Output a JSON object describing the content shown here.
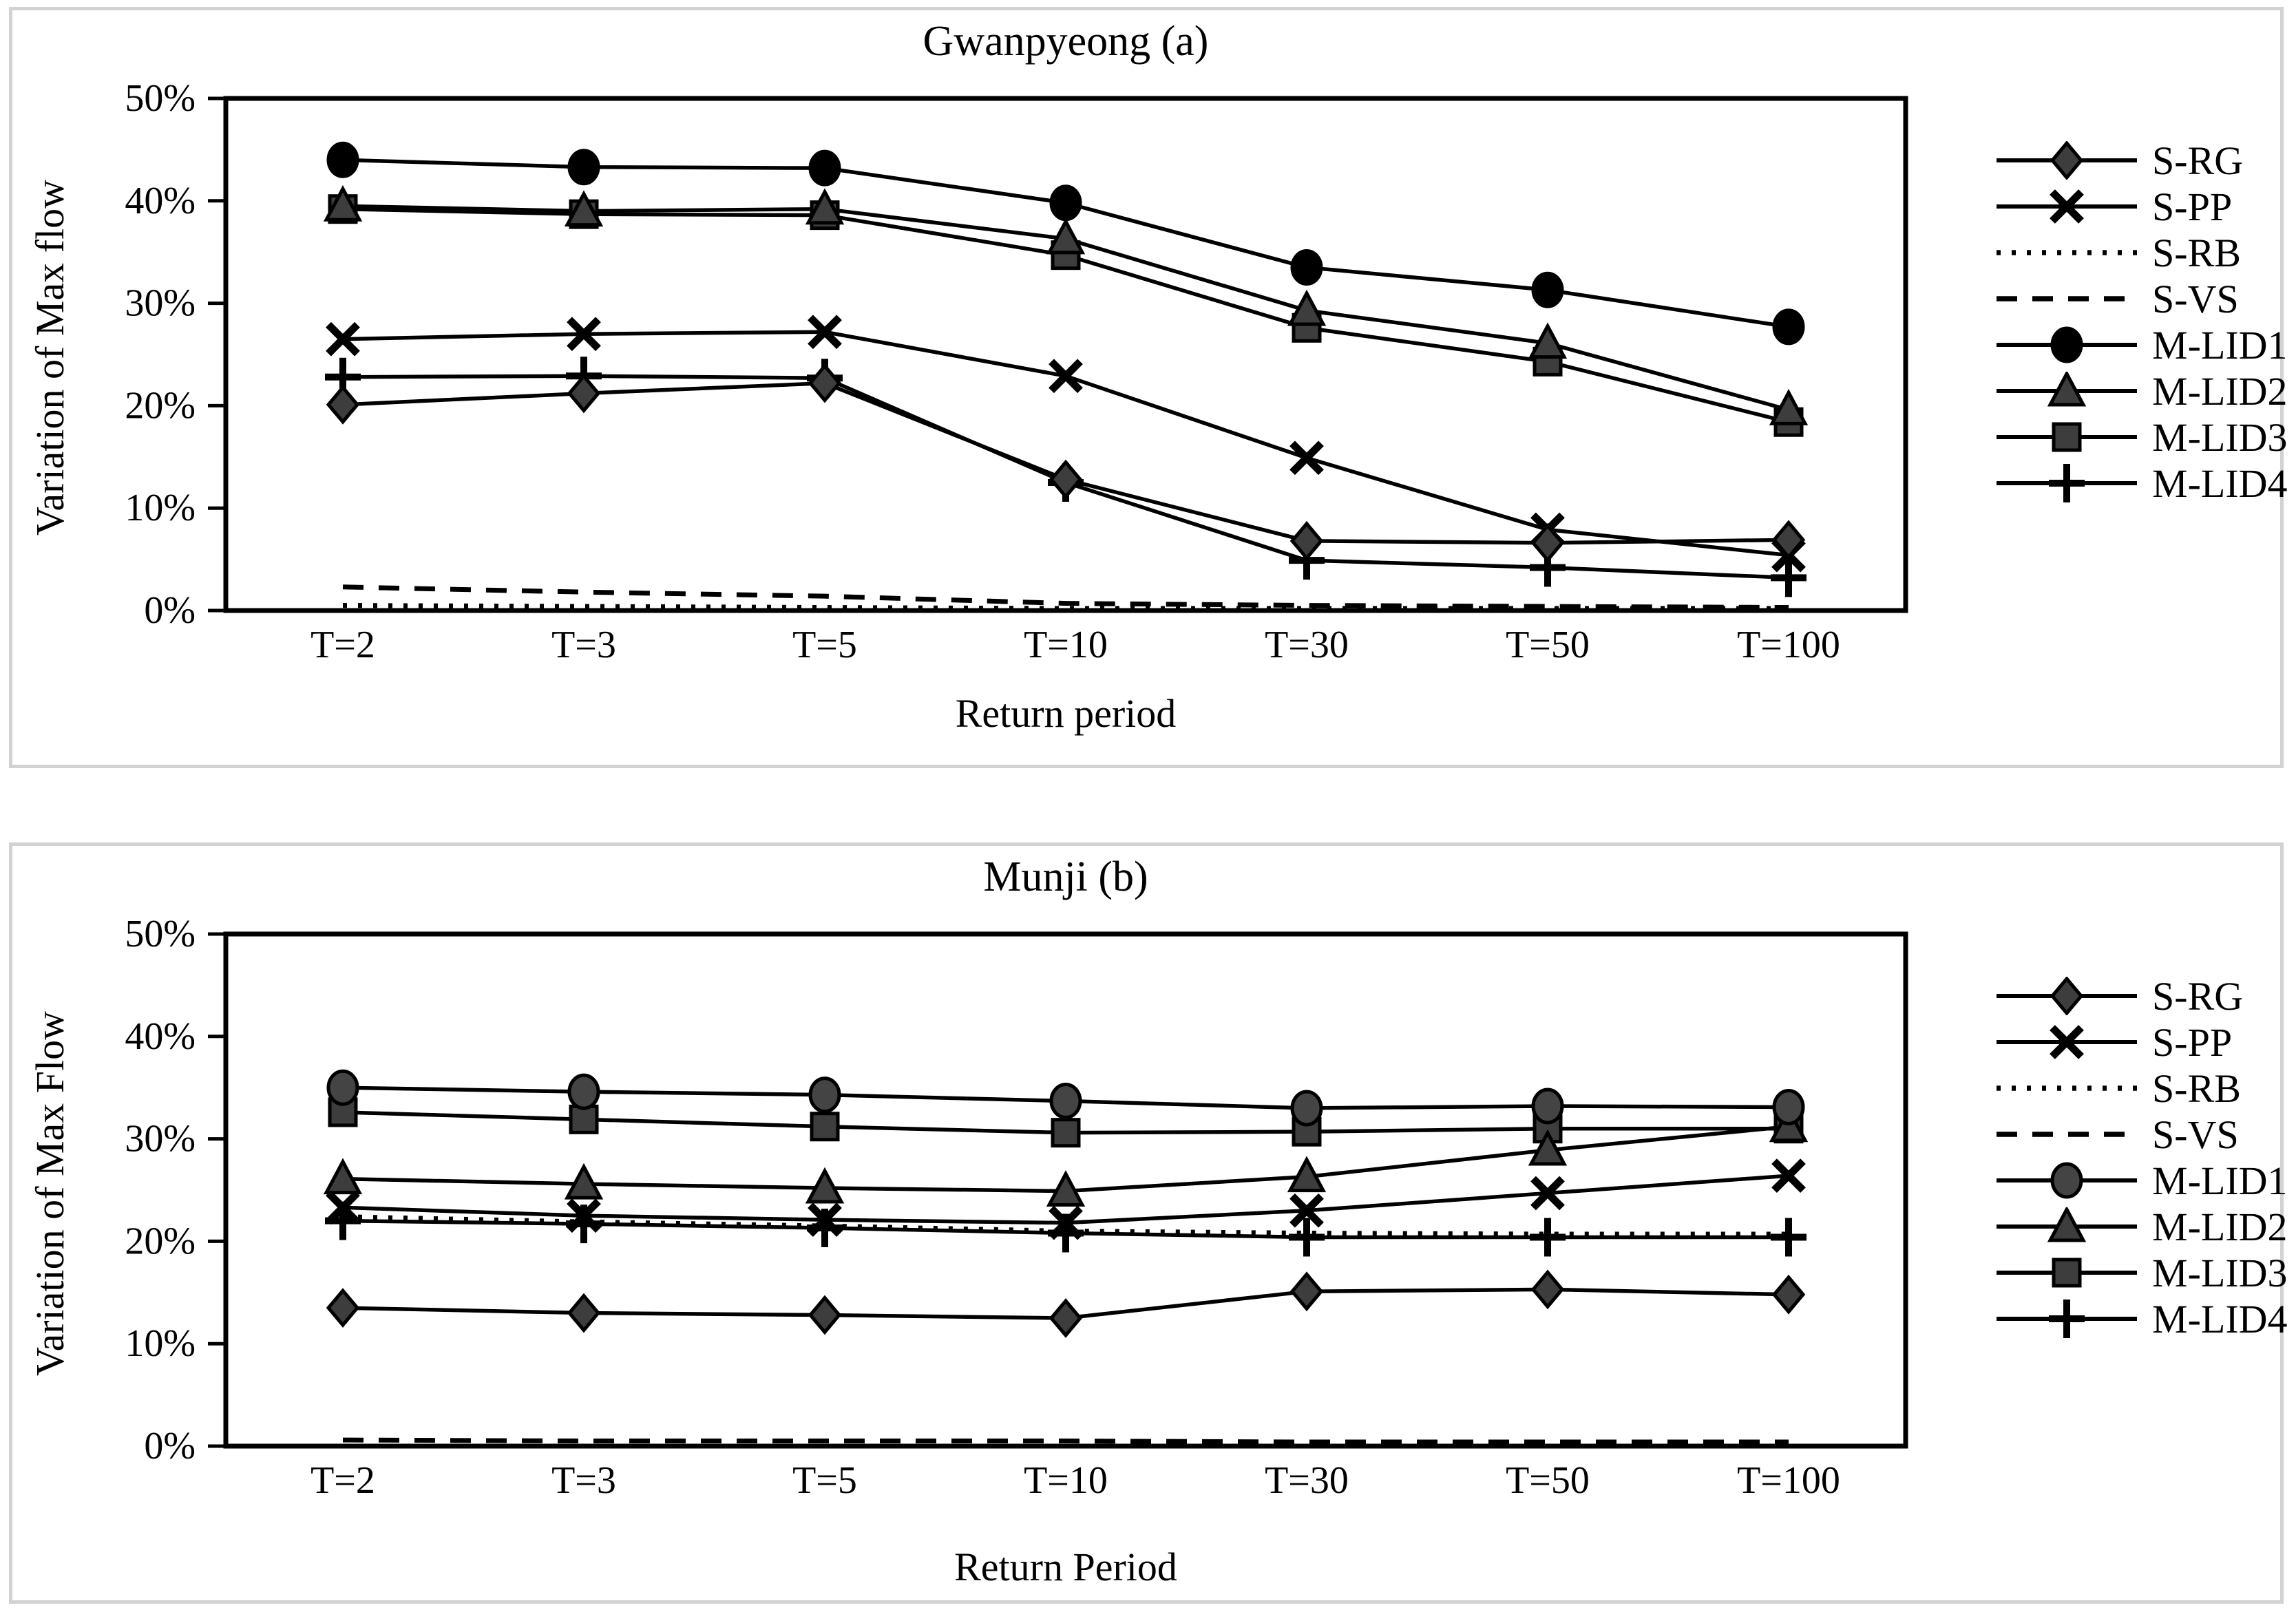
{
  "page": {
    "background": "#ffffff",
    "panel_border_color": "#d2d2d2",
    "line_color": "#000000",
    "marker_gray": "#3d3d3d"
  },
  "chart_data": [
    {
      "type": "line",
      "title": "Gwanpyeong (a)",
      "ylabel": "Variation of Max flow",
      "xlabel": "Return period",
      "ylim": [
        0,
        50
      ],
      "grid": false,
      "legend_position": "right",
      "categories": [
        "T=2",
        "T=3",
        "T=5",
        "T=10",
        "T=30",
        "T=50",
        "T=100"
      ],
      "y_ticks": [
        {
          "value": 50,
          "label": "50%"
        },
        {
          "value": 40,
          "label": "40%"
        },
        {
          "value": 30,
          "label": "30%"
        },
        {
          "value": 20,
          "label": "20%"
        },
        {
          "value": 10,
          "label": "10%"
        },
        {
          "value": 0,
          "label": "0%"
        }
      ],
      "series": [
        {
          "name": "S-RG",
          "marker": "diamond",
          "line": "solid",
          "marker_fill": "#3d3d3d",
          "values": [
            20.1,
            21.2,
            22.2,
            12.8,
            6.8,
            6.6,
            6.9
          ]
        },
        {
          "name": "S-PP",
          "marker": "x",
          "line": "solid",
          "marker_fill": "#000000",
          "values": [
            26.5,
            27.0,
            27.2,
            22.9,
            14.9,
            7.9,
            5.4
          ]
        },
        {
          "name": "S-RB",
          "marker": "none",
          "line": "dotted",
          "marker_fill": "#000000",
          "values": [
            0.5,
            0.4,
            0.3,
            0.2,
            0.2,
            0.2,
            0.2
          ]
        },
        {
          "name": "S-VS",
          "marker": "none",
          "line": "dashed",
          "marker_fill": "#000000",
          "values": [
            2.3,
            1.8,
            1.4,
            0.7,
            0.5,
            0.4,
            0.3
          ]
        },
        {
          "name": "M-LID1",
          "marker": "circle",
          "line": "solid",
          "marker_fill": "#000000",
          "values": [
            44.0,
            43.3,
            43.2,
            39.8,
            33.5,
            31.3,
            27.7
          ]
        },
        {
          "name": "M-LID2",
          "marker": "triangle",
          "line": "solid",
          "marker_fill": "#3d3d3d",
          "values": [
            39.5,
            39.0,
            39.2,
            36.3,
            29.3,
            26.1,
            19.6
          ]
        },
        {
          "name": "M-LID3",
          "marker": "square",
          "line": "solid",
          "marker_fill": "#3d3d3d",
          "values": [
            39.2,
            38.7,
            38.6,
            34.7,
            27.6,
            24.3,
            18.4
          ]
        },
        {
          "name": "M-LID4",
          "marker": "plus",
          "line": "solid",
          "marker_fill": "#000000",
          "values": [
            22.8,
            22.9,
            22.7,
            12.5,
            4.9,
            4.2,
            3.2
          ]
        }
      ]
    },
    {
      "type": "line",
      "title": "Munji (b)",
      "ylabel": "Variation of Max Flow",
      "xlabel": "Return Period",
      "ylim": [
        0,
        50
      ],
      "grid": false,
      "legend_position": "right",
      "categories": [
        "T=2",
        "T=3",
        "T=5",
        "T=10",
        "T=30",
        "T=50",
        "T=100"
      ],
      "y_ticks": [
        {
          "value": 50,
          "label": "50%"
        },
        {
          "value": 40,
          "label": "40%"
        },
        {
          "value": 30,
          "label": "30%"
        },
        {
          "value": 20,
          "label": "20%"
        },
        {
          "value": 10,
          "label": "10%"
        },
        {
          "value": 0,
          "label": "0%"
        }
      ],
      "series": [
        {
          "name": "S-RG",
          "marker": "diamond",
          "line": "solid",
          "marker_fill": "#3d3d3d",
          "values": [
            13.5,
            13.0,
            12.8,
            12.5,
            15.1,
            15.3,
            14.8
          ]
        },
        {
          "name": "S-PP",
          "marker": "x",
          "line": "solid",
          "marker_fill": "#000000",
          "values": [
            23.3,
            22.5,
            22.1,
            21.8,
            23.0,
            24.7,
            26.4
          ]
        },
        {
          "name": "S-RB",
          "marker": "none",
          "line": "dotted",
          "marker_fill": "#000000",
          "values": [
            22.4,
            21.9,
            21.5,
            21.0,
            20.8,
            20.7,
            20.7
          ]
        },
        {
          "name": "S-VS",
          "marker": "none",
          "line": "dashed",
          "marker_fill": "#000000",
          "values": [
            0.6,
            0.5,
            0.5,
            0.5,
            0.4,
            0.4,
            0.4
          ]
        },
        {
          "name": "M-LID1",
          "marker": "circle",
          "line": "solid",
          "marker_fill": "#444444",
          "values": [
            35.0,
            34.6,
            34.3,
            33.7,
            33.0,
            33.2,
            33.1
          ]
        },
        {
          "name": "M-LID2",
          "marker": "triangle",
          "line": "solid",
          "marker_fill": "#3d3d3d",
          "values": [
            26.1,
            25.6,
            25.2,
            24.9,
            26.3,
            28.9,
            31.2
          ]
        },
        {
          "name": "M-LID3",
          "marker": "square",
          "line": "solid",
          "marker_fill": "#3d3d3d",
          "values": [
            32.6,
            31.9,
            31.2,
            30.6,
            30.7,
            31.0,
            31.0
          ]
        },
        {
          "name": "M-LID4",
          "marker": "plus",
          "line": "solid",
          "marker_fill": "#000000",
          "values": [
            22.0,
            21.7,
            21.3,
            20.8,
            20.4,
            20.4,
            20.4
          ]
        }
      ]
    }
  ]
}
